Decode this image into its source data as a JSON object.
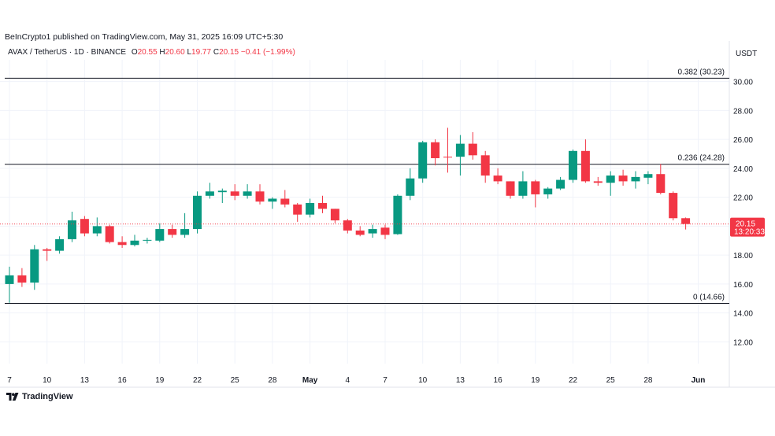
{
  "publisher": "BeInCrypto1 published on TradingView.com, May 31, 2025 16:09 UTC+5:30",
  "legend": {
    "symbol": "AVAX / TetherUS · 1D · BINANCE",
    "o_label": "O",
    "o_value": "20.55",
    "h_label": "H",
    "h_value": "20.60",
    "l_label": "L",
    "l_value": "19.77",
    "c_label": "C",
    "c_value": "20.15",
    "change": "−0.41 (−1.99%)"
  },
  "footer": {
    "brand": "TradingView"
  },
  "colors": {
    "up": "#089981",
    "down": "#f23645",
    "grid": "#f0f3fa",
    "text": "#131722",
    "fib_line": "#131722"
  },
  "chart_data": {
    "type": "candlestick",
    "currency_label": "USDT",
    "ylim": [
      10.5,
      31.5
    ],
    "y_ticks": [
      "12.00",
      "14.00",
      "16.00",
      "18.00",
      "20.00",
      "22.00",
      "24.00",
      "26.00",
      "28.00",
      "30.00"
    ],
    "x_ticks": [
      {
        "day": 0,
        "label": "7"
      },
      {
        "day": 3,
        "label": "10"
      },
      {
        "day": 6,
        "label": "13"
      },
      {
        "day": 9,
        "label": "16"
      },
      {
        "day": 12,
        "label": "19"
      },
      {
        "day": 15,
        "label": "22"
      },
      {
        "day": 18,
        "label": "25"
      },
      {
        "day": 21,
        "label": "28"
      },
      {
        "day": 24,
        "label": "May"
      },
      {
        "day": 27,
        "label": "4"
      },
      {
        "day": 30,
        "label": "7"
      },
      {
        "day": 33,
        "label": "10"
      },
      {
        "day": 36,
        "label": "13"
      },
      {
        "day": 39,
        "label": "16"
      },
      {
        "day": 42,
        "label": "19"
      },
      {
        "day": 45,
        "label": "22"
      },
      {
        "day": 48,
        "label": "25"
      },
      {
        "day": 51,
        "label": "28"
      },
      {
        "day": 55,
        "label": "Jun"
      }
    ],
    "fib_levels": [
      {
        "value": 30.23,
        "label": "0.382 (30.23)"
      },
      {
        "value": 24.28,
        "label": "0.236 (24.28)"
      },
      {
        "value": 14.66,
        "label": "0 (14.66)"
      }
    ],
    "last_price": {
      "value": 20.15,
      "label": "20.15",
      "countdown": "13:20:33"
    },
    "candles": [
      {
        "o": 16.0,
        "h": 17.2,
        "l": 14.7,
        "c": 16.6
      },
      {
        "o": 16.6,
        "h": 17.1,
        "l": 15.8,
        "c": 16.1
      },
      {
        "o": 16.1,
        "h": 18.7,
        "l": 15.6,
        "c": 18.4
      },
      {
        "o": 18.4,
        "h": 18.5,
        "l": 17.6,
        "c": 18.3
      },
      {
        "o": 18.3,
        "h": 19.3,
        "l": 18.1,
        "c": 19.1
      },
      {
        "o": 19.1,
        "h": 21.0,
        "l": 18.9,
        "c": 20.4
      },
      {
        "o": 20.5,
        "h": 20.7,
        "l": 19.3,
        "c": 19.5
      },
      {
        "o": 19.5,
        "h": 20.6,
        "l": 19.3,
        "c": 20.0
      },
      {
        "o": 20.0,
        "h": 20.1,
        "l": 18.8,
        "c": 18.9
      },
      {
        "o": 18.9,
        "h": 19.3,
        "l": 18.5,
        "c": 18.7
      },
      {
        "o": 18.7,
        "h": 19.4,
        "l": 18.6,
        "c": 19.0
      },
      {
        "o": 19.0,
        "h": 19.2,
        "l": 18.8,
        "c": 19.05
      },
      {
        "o": 19.0,
        "h": 20.2,
        "l": 18.9,
        "c": 19.8
      },
      {
        "o": 19.8,
        "h": 20.1,
        "l": 19.2,
        "c": 19.4
      },
      {
        "o": 19.4,
        "h": 20.9,
        "l": 19.2,
        "c": 19.8
      },
      {
        "o": 19.8,
        "h": 22.4,
        "l": 19.5,
        "c": 22.1
      },
      {
        "o": 22.1,
        "h": 23.0,
        "l": 21.9,
        "c": 22.4
      },
      {
        "o": 22.35,
        "h": 22.6,
        "l": 21.6,
        "c": 22.45
      },
      {
        "o": 22.4,
        "h": 22.9,
        "l": 21.8,
        "c": 22.1
      },
      {
        "o": 22.1,
        "h": 22.9,
        "l": 21.9,
        "c": 22.4
      },
      {
        "o": 22.4,
        "h": 22.9,
        "l": 21.5,
        "c": 21.7
      },
      {
        "o": 21.7,
        "h": 22.0,
        "l": 21.2,
        "c": 21.9
      },
      {
        "o": 21.9,
        "h": 22.5,
        "l": 21.3,
        "c": 21.5
      },
      {
        "o": 21.5,
        "h": 21.6,
        "l": 20.3,
        "c": 20.8
      },
      {
        "o": 20.8,
        "h": 21.9,
        "l": 20.6,
        "c": 21.6
      },
      {
        "o": 21.6,
        "h": 22.1,
        "l": 20.9,
        "c": 21.2
      },
      {
        "o": 21.2,
        "h": 21.2,
        "l": 20.2,
        "c": 20.4
      },
      {
        "o": 20.4,
        "h": 20.5,
        "l": 19.5,
        "c": 19.7
      },
      {
        "o": 19.7,
        "h": 20.0,
        "l": 19.3,
        "c": 19.4
      },
      {
        "o": 19.5,
        "h": 20.1,
        "l": 19.2,
        "c": 19.8
      },
      {
        "o": 19.9,
        "h": 20.1,
        "l": 19.1,
        "c": 19.4
      },
      {
        "o": 19.45,
        "h": 22.2,
        "l": 19.4,
        "c": 22.1
      },
      {
        "o": 22.1,
        "h": 24.0,
        "l": 21.8,
        "c": 23.3
      },
      {
        "o": 23.3,
        "h": 25.9,
        "l": 23.0,
        "c": 25.8
      },
      {
        "o": 25.8,
        "h": 26.0,
        "l": 24.2,
        "c": 24.7
      },
      {
        "o": 24.8,
        "h": 26.8,
        "l": 23.7,
        "c": 24.75
      },
      {
        "o": 24.8,
        "h": 26.3,
        "l": 23.5,
        "c": 25.7
      },
      {
        "o": 25.7,
        "h": 26.5,
        "l": 24.6,
        "c": 24.9
      },
      {
        "o": 24.9,
        "h": 25.2,
        "l": 23.0,
        "c": 23.5
      },
      {
        "o": 23.5,
        "h": 24.0,
        "l": 22.9,
        "c": 23.1
      },
      {
        "o": 23.1,
        "h": 23.1,
        "l": 21.9,
        "c": 22.1
      },
      {
        "o": 22.1,
        "h": 23.8,
        "l": 21.9,
        "c": 23.1
      },
      {
        "o": 23.1,
        "h": 23.2,
        "l": 21.3,
        "c": 22.2
      },
      {
        "o": 22.2,
        "h": 22.7,
        "l": 21.9,
        "c": 22.6
      },
      {
        "o": 22.6,
        "h": 23.4,
        "l": 22.5,
        "c": 23.2
      },
      {
        "o": 23.2,
        "h": 25.3,
        "l": 23.0,
        "c": 25.2
      },
      {
        "o": 25.2,
        "h": 26.0,
        "l": 23.0,
        "c": 23.1
      },
      {
        "o": 23.1,
        "h": 23.4,
        "l": 22.8,
        "c": 23.0
      },
      {
        "o": 23.0,
        "h": 23.8,
        "l": 22.1,
        "c": 23.5
      },
      {
        "o": 23.5,
        "h": 23.9,
        "l": 22.8,
        "c": 23.1
      },
      {
        "o": 23.1,
        "h": 23.8,
        "l": 22.6,
        "c": 23.4
      },
      {
        "o": 23.35,
        "h": 23.8,
        "l": 22.9,
        "c": 23.6
      },
      {
        "o": 23.6,
        "h": 24.3,
        "l": 22.2,
        "c": 22.3
      },
      {
        "o": 22.3,
        "h": 22.4,
        "l": 20.4,
        "c": 20.55
      },
      {
        "o": 20.55,
        "h": 20.6,
        "l": 19.77,
        "c": 20.15
      }
    ]
  }
}
